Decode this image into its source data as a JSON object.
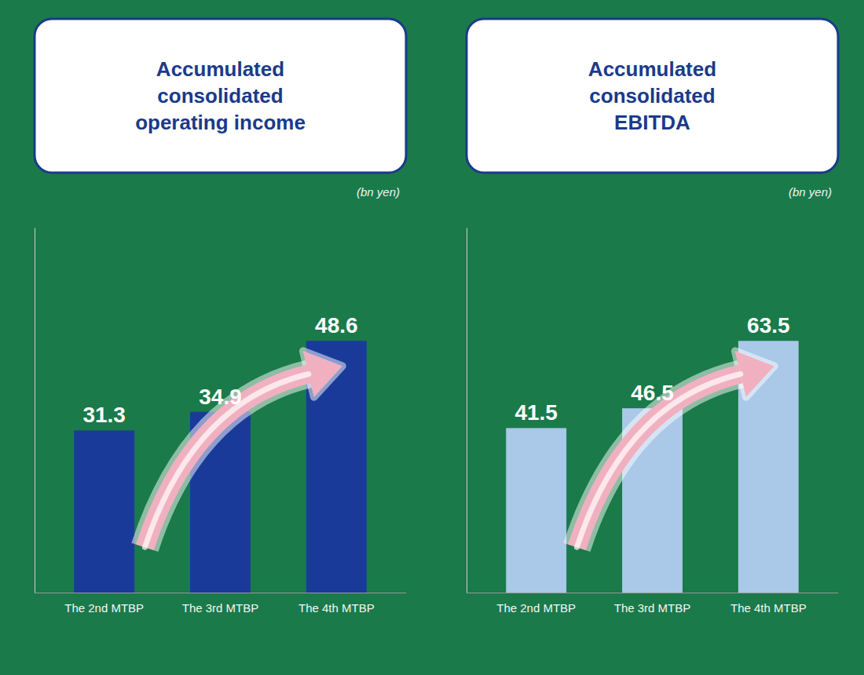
{
  "chart_data": [
    {
      "type": "bar",
      "title": "Accumulated\nconsolidated\noperating income",
      "y_label": "(bn yen)",
      "categories": [
        "The 2nd MTBP",
        "The 3rd MTBP",
        "The 4th MTBP"
      ],
      "values": [
        31.3,
        34.9,
        48.6
      ],
      "color": "#1a3a9a",
      "ylim": [
        0,
        70.47
      ],
      "data_labels": true,
      "tick_labels": "x",
      "grid": false
    },
    {
      "type": "bar",
      "title": "Accumulated\nconsolidated\nEBITDA",
      "y_label": "(bn yen)",
      "categories": [
        "The 2nd MTBP",
        "The 3rd MTBP",
        "The 4th MTBP"
      ],
      "values": [
        41.5,
        46.5,
        63.5
      ],
      "color": "#aac8e8",
      "ylim": [
        0,
        92.075
      ],
      "data_labels": true,
      "tick_labels": "x",
      "grid": false
    }
  ]
}
